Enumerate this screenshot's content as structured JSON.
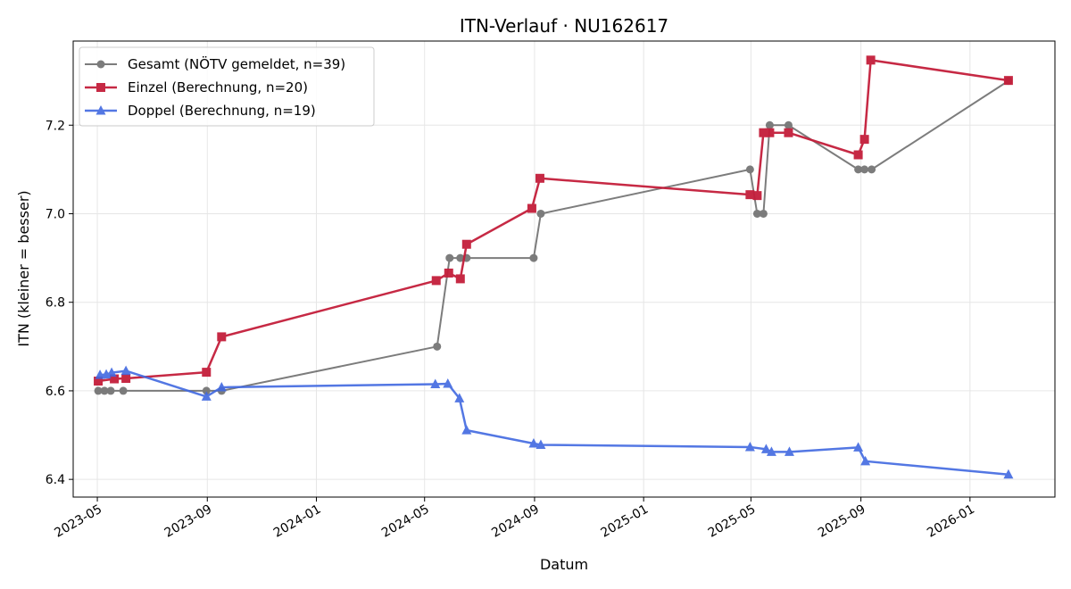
{
  "chart_data": {
    "type": "line",
    "title": "ITN-Verlauf · NU162617",
    "xlabel": "Datum",
    "ylabel": "ITN  (kleiner = besser)",
    "x_ticks": [
      "2023-05",
      "2023-09",
      "2024-01",
      "2024-05",
      "2024-09",
      "2025-01",
      "2025-05",
      "2025-09",
      "2026-01"
    ],
    "y_ticks": [
      "6.4",
      "6.6",
      "6.8",
      "7.0",
      "7.2"
    ],
    "xlim": [
      "2023-04-04",
      "2026-04-06"
    ],
    "ylim": [
      6.36,
      7.39
    ],
    "grid": true,
    "legend_position": "top-left",
    "series": [
      {
        "name": "Gesamt (NÖTV gemeldet, n=39)",
        "color": "#666666",
        "marker": "circle",
        "x": [
          "2023-05-02",
          "2023-05-09",
          "2023-05-16",
          "2023-05-30",
          "2023-08-31",
          "2023-09-17",
          "2024-05-15",
          "2024-05-29",
          "2024-06-10",
          "2024-06-17",
          "2024-08-31",
          "2024-09-08",
          "2025-04-30",
          "2025-05-08",
          "2025-05-15",
          "2025-05-22",
          "2025-06-12",
          "2025-08-29",
          "2025-09-05",
          "2025-09-13",
          "2026-02-13"
        ],
        "y": [
          6.6,
          6.6,
          6.6,
          6.6,
          6.6,
          6.6,
          6.7,
          6.9,
          6.9,
          6.9,
          6.9,
          7.0,
          7.1,
          7.0,
          7.0,
          7.2,
          7.2,
          7.1,
          7.1,
          7.1,
          7.3
        ]
      },
      {
        "name": "Einzel (Berechnung, n=20)",
        "color": "#c41e3a",
        "marker": "square",
        "x": [
          "2023-05-02",
          "2023-05-20",
          "2023-06-02",
          "2023-08-31",
          "2023-09-17",
          "2024-05-14",
          "2024-05-28",
          "2024-06-10",
          "2024-06-17",
          "2024-08-29",
          "2024-09-07",
          "2025-04-30",
          "2025-05-08",
          "2025-05-15",
          "2025-05-22",
          "2025-06-12",
          "2025-08-29",
          "2025-09-05",
          "2025-09-12",
          "2026-02-13"
        ],
        "y": [
          6.622,
          6.627,
          6.628,
          6.642,
          6.722,
          6.849,
          6.866,
          6.853,
          6.931,
          7.012,
          7.08,
          7.043,
          7.041,
          7.183,
          7.183,
          7.183,
          7.133,
          7.168,
          7.347,
          7.301
        ]
      },
      {
        "name": "Doppel (Berechnung, n=19)",
        "color": "#4169e1",
        "marker": "triangle",
        "x": [
          "2023-05-04",
          "2023-05-11",
          "2023-05-17",
          "2023-06-02",
          "2023-08-31",
          "2023-09-17",
          "2024-05-13",
          "2024-05-27",
          "2024-06-09",
          "2024-06-17",
          "2024-08-31",
          "2024-09-08",
          "2025-04-30",
          "2025-05-18",
          "2025-05-24",
          "2025-06-13",
          "2025-08-29",
          "2025-09-06",
          "2026-02-13"
        ],
        "y": [
          6.636,
          6.637,
          6.641,
          6.645,
          6.587,
          6.608,
          6.615,
          6.616,
          6.583,
          6.511,
          6.481,
          6.478,
          6.473,
          6.468,
          6.462,
          6.462,
          6.472,
          6.441,
          6.411
        ]
      }
    ]
  }
}
